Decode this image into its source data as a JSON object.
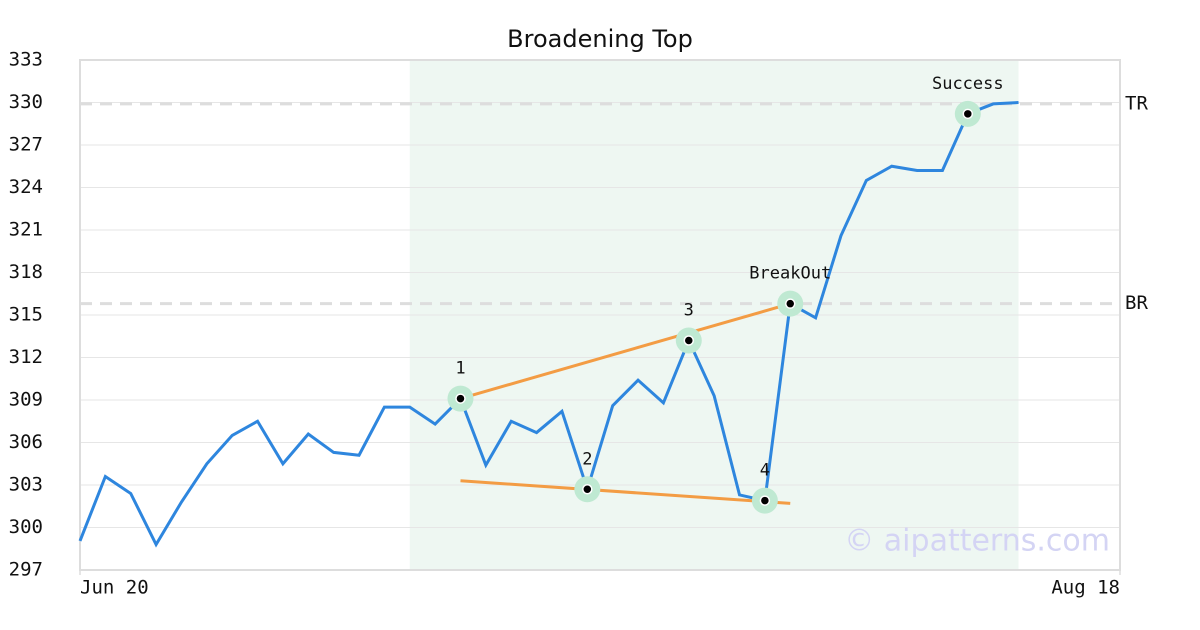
{
  "chart_data": {
    "type": "line",
    "title": "Broadening Top",
    "x": [
      0,
      1,
      2,
      3,
      4,
      5,
      6,
      7,
      8,
      9,
      10,
      11,
      12,
      13,
      14,
      15,
      16,
      17,
      18,
      19,
      20,
      21,
      22,
      23,
      24,
      25,
      26,
      27,
      28,
      29,
      30,
      31,
      32,
      33,
      34,
      35,
      36,
      37
    ],
    "values": [
      299.05,
      303.6,
      302.4,
      298.8,
      301.8,
      304.5,
      306.5,
      307.5,
      304.5,
      306.6,
      305.3,
      305.1,
      308.5,
      308.5,
      307.3,
      309.1,
      304.4,
      307.5,
      306.7,
      308.2,
      302.7,
      308.6,
      310.4,
      308.8,
      313.2,
      309.3,
      302.3,
      301.9,
      315.8,
      314.8,
      320.6,
      324.5,
      325.5,
      325.2,
      325.2,
      329.2,
      329.9,
      330.0
    ],
    "color": "#2e86de",
    "xlim": [
      0,
      41
    ],
    "xticks": [
      {
        "value": 0,
        "label": "Jun 20"
      },
      {
        "value": 41,
        "label": "Aug 18"
      }
    ],
    "ylim": [
      297,
      333
    ],
    "yticks": [
      297,
      300,
      303,
      306,
      309,
      312,
      315,
      318,
      321,
      324,
      327,
      330,
      333
    ],
    "grid": true,
    "highlight": [
      13,
      37
    ],
    "points": [
      {
        "label": "1",
        "x": 15,
        "y": 309.1
      },
      {
        "label": "2",
        "x": 20,
        "y": 302.7
      },
      {
        "label": "3",
        "x": 24,
        "y": 313.2
      },
      {
        "label": "4",
        "x": 27,
        "y": 301.9
      },
      {
        "label": "BreakOut",
        "x": 28,
        "y": 315.8
      },
      {
        "label": "Success",
        "x": 35,
        "y": 329.2
      }
    ],
    "trendlines": [
      {
        "x": [
          15,
          28
        ],
        "y": [
          309.1,
          315.8
        ],
        "color": "#f39c44"
      },
      {
        "x": [
          15,
          28
        ],
        "y": [
          303.3,
          301.7
        ],
        "color": "#f39c44"
      }
    ],
    "levels": [
      {
        "label": "TR",
        "value": 329.9
      },
      {
        "label": "BR",
        "value": 315.8
      }
    ],
    "watermark": "© aipatterns.com"
  }
}
